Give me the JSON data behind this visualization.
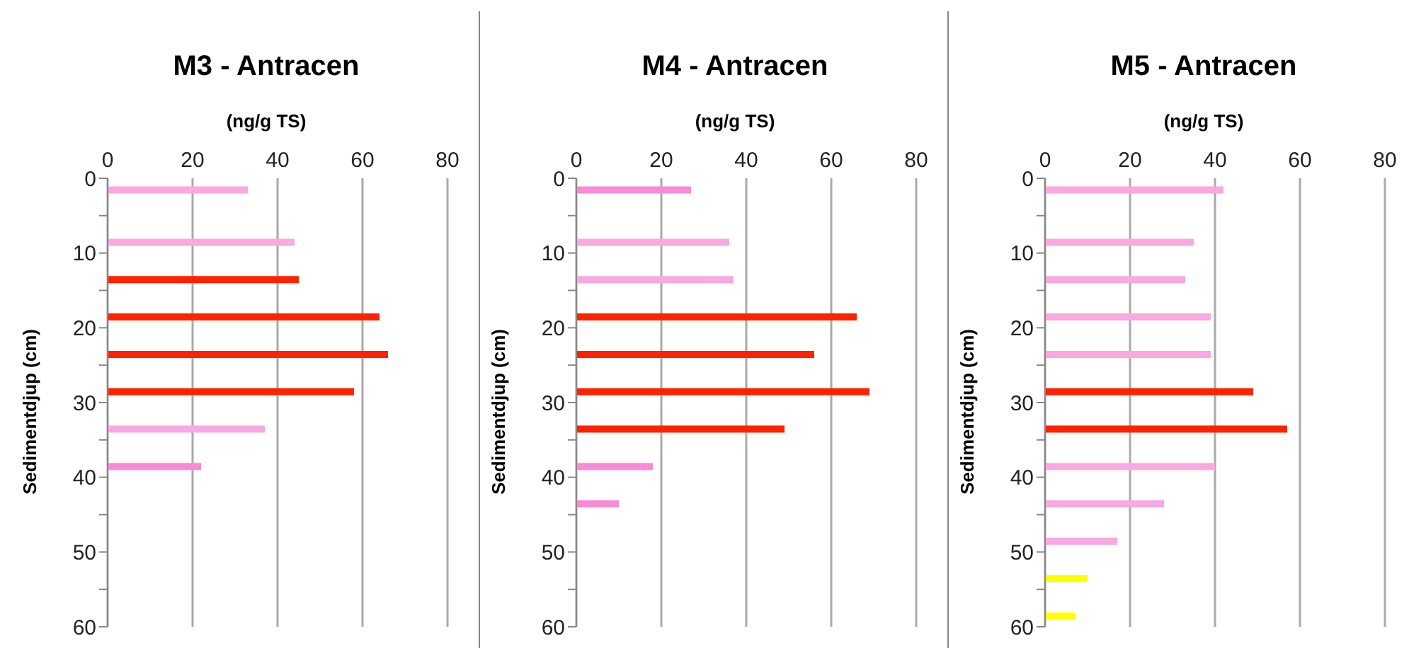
{
  "chart_data": [
    {
      "type": "bar",
      "orientation": "horizontal",
      "title": "M3 - Antracen",
      "xlabel": "(ng/g TS)",
      "ylabel": "Sedimentdjup (cm)",
      "x": [
        1.5,
        8.5,
        13.5,
        18.5,
        23.5,
        28.5,
        33.5,
        38.5
      ],
      "values": [
        33,
        44,
        45,
        64,
        66,
        58,
        37,
        22
      ],
      "colors": [
        "#f9a8e0",
        "#f9a8e0",
        "#ff2200",
        "#ff2200",
        "#ff2200",
        "#ff2200",
        "#f9a8e0",
        "#f98ad6"
      ],
      "xlim": [
        0,
        80
      ],
      "xticks": [
        0,
        20,
        40,
        60,
        80
      ],
      "ylim": [
        60,
        0
      ],
      "yticks": [
        0,
        {
          "value": 5,
          "label": null
        },
        10,
        {
          "value": 15,
          "label": null
        },
        20,
        {
          "value": 25,
          "label": null
        },
        30,
        {
          "value": 35,
          "label": null
        },
        40,
        {
          "value": 45,
          "label": null
        },
        50,
        {
          "value": 55,
          "label": null
        },
        60
      ],
      "grid": "x",
      "legend": false
    },
    {
      "type": "bar",
      "orientation": "horizontal",
      "title": "M4 - Antracen",
      "xlabel": "(ng/g TS)",
      "ylabel": "Sedimentdjup (cm)",
      "x": [
        1.5,
        8.5,
        13.5,
        18.5,
        23.5,
        28.5,
        33.5,
        38.5,
        43.5
      ],
      "values": [
        27,
        36,
        37,
        66,
        56,
        69,
        49,
        18,
        10
      ],
      "colors": [
        "#f98ad6",
        "#f9a8e0",
        "#f9a8e0",
        "#ff2200",
        "#ff2200",
        "#ff2200",
        "#ff2200",
        "#f98ad6",
        "#f98ad6"
      ],
      "xlim": [
        0,
        80
      ],
      "xticks": [
        0,
        20,
        40,
        60,
        80
      ],
      "ylim": [
        60,
        0
      ],
      "yticks": [
        0,
        {
          "value": 5,
          "label": null
        },
        10,
        {
          "value": 15,
          "label": null
        },
        20,
        {
          "value": 25,
          "label": null
        },
        30,
        {
          "value": 35,
          "label": null
        },
        40,
        {
          "value": 45,
          "label": null
        },
        50,
        {
          "value": 55,
          "label": null
        },
        60
      ],
      "grid": "x",
      "legend": false
    },
    {
      "type": "bar",
      "orientation": "horizontal",
      "title": "M5 - Antracen",
      "xlabel": "(ng/g TS)",
      "ylabel": "Sedimentdjup (cm)",
      "x": [
        1.5,
        8.5,
        13.5,
        18.5,
        23.5,
        28.5,
        33.5,
        38.5,
        43.5,
        48.5,
        53.5,
        58.5
      ],
      "values": [
        42,
        35,
        33,
        39,
        39,
        49,
        57,
        40,
        28,
        17,
        10,
        7
      ],
      "colors": [
        "#f9a8e0",
        "#f9a8e0",
        "#f9a8e0",
        "#f9a8e0",
        "#f9a8e0",
        "#ff2200",
        "#ff2200",
        "#f9a8e0",
        "#f9a8e0",
        "#f9a8e0",
        "#ffff00",
        "#ffff00"
      ],
      "xlim": [
        0,
        80
      ],
      "xticks": [
        0,
        20,
        40,
        60,
        80
      ],
      "ylim": [
        60,
        0
      ],
      "yticks": [
        0,
        {
          "value": 5,
          "label": null
        },
        10,
        {
          "value": 15,
          "label": null
        },
        20,
        {
          "value": 25,
          "label": null
        },
        30,
        {
          "value": 35,
          "label": null
        },
        40,
        {
          "value": 45,
          "label": null
        },
        50,
        {
          "value": 55,
          "label": null
        },
        60
      ],
      "grid": "x",
      "legend": false
    }
  ]
}
